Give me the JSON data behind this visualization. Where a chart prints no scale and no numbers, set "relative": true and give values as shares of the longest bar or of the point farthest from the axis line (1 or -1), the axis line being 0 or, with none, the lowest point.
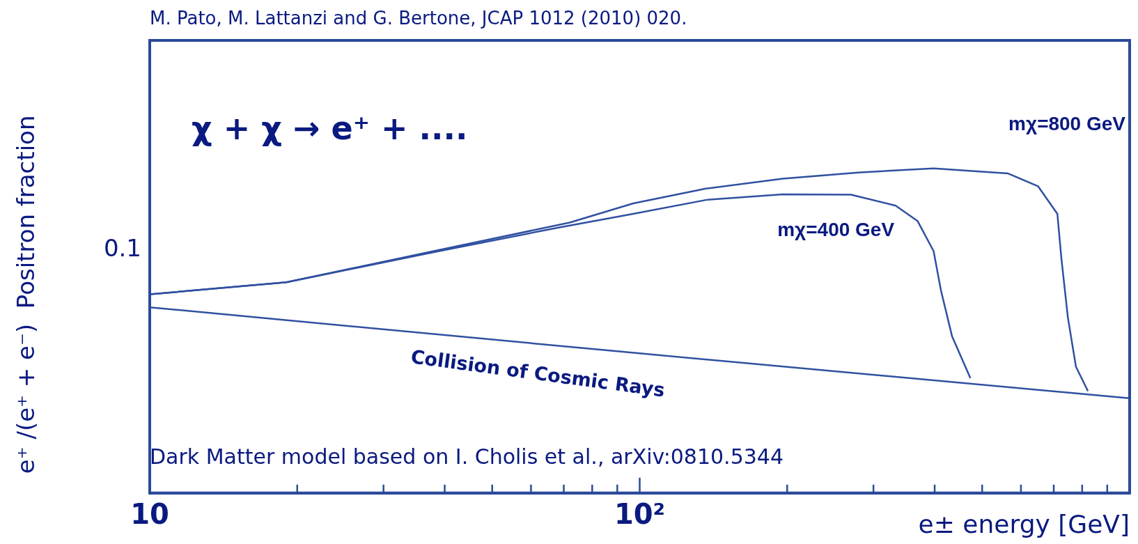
{
  "chart_data": {
    "type": "line",
    "xlabel": "e± energy [GeV]",
    "ylabel": "e⁺ /(e⁺ + e⁻)  Positron fraction",
    "annotations": [
      "M. Pato, M. Lattanzi and G. Bertone, JCAP 1012 (2010) 020.",
      "χ + χ → e⁺ + ....",
      "Dark Matter model based on I. Cholis et al., arXiv:0810.5344",
      "0.1"
    ],
    "relative": true,
    "log": "x",
    "grid": false,
    "legend": false,
    "marker": "none",
    "line_style": "solid",
    "xlim": [
      10,
      1000
    ],
    "xticks": [
      10,
      {
        "value": 20,
        "label": null
      },
      {
        "value": 30,
        "label": null
      },
      {
        "value": 40,
        "label": null
      },
      {
        "value": 50,
        "label": null
      },
      {
        "value": 60,
        "label": null
      },
      {
        "value": 70,
        "label": null
      },
      {
        "value": 80,
        "label": null
      },
      {
        "value": 90,
        "label": null
      },
      {
        "value": 100,
        "label": "10²"
      },
      {
        "value": 200,
        "label": null
      },
      {
        "value": 300,
        "label": null
      },
      {
        "value": 400,
        "label": null
      },
      {
        "value": 500,
        "label": null
      },
      {
        "value": 600,
        "label": null
      },
      {
        "value": 700,
        "label": null
      },
      {
        "value": 800,
        "label": null
      },
      {
        "value": 900,
        "label": null
      }
    ],
    "series": [
      {
        "name": "mχ=800 GeV",
        "color": "#3050a0",
        "x": [
          10,
          19,
          38,
          72,
          97,
          137,
          196,
          279,
          398,
          565,
          650,
          712,
          726,
          748,
          777,
          822
        ],
        "values": [
          0.612,
          0.649,
          0.745,
          0.833,
          0.892,
          0.938,
          0.968,
          0.987,
          1,
          0.984,
          0.945,
          0.86,
          0.719,
          0.541,
          0.389,
          0.314
        ]
      },
      {
        "name": "mχ=400 GeV",
        "color": "#3050a0",
        "x": [
          10,
          19,
          38,
          68,
          97,
          137,
          196,
          270,
          333,
          369,
          398,
          412,
          434,
          473
        ],
        "values": [
          0.612,
          0.649,
          0.742,
          0.817,
          0.86,
          0.903,
          0.92,
          0.919,
          0.885,
          0.838,
          0.745,
          0.624,
          0.483,
          0.354
        ]
      },
      {
        "name": "Collision of Cosmic Rays",
        "color": "#3050a0",
        "x": [
          10,
          100,
          1000
        ],
        "values": [
          0.572,
          0.43,
          0.292
        ]
      }
    ]
  }
}
